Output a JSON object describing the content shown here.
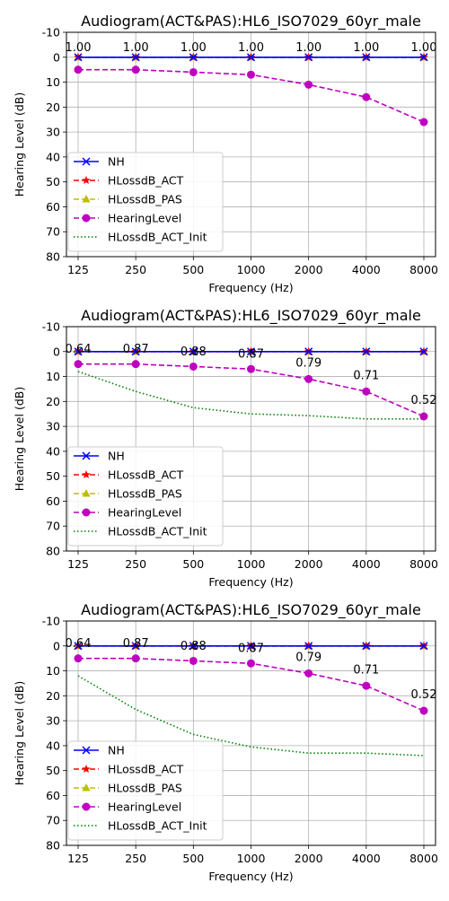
{
  "figure": {
    "title": "Audiogram(ACT&PAS):HL6_ISO7029_60yr_male"
  },
  "chart_data": [
    {
      "type": "line",
      "title": "Audiogram(ACT&PAS):HL6_ISO7029_60yr_male",
      "xlabel": "Frequency (Hz)",
      "ylabel": "Hearing Level (dB)",
      "categories": [
        "125",
        "250",
        "500",
        "1000",
        "2000",
        "4000",
        "8000"
      ],
      "yticks": [
        "-10",
        "0",
        "10",
        "20",
        "30",
        "40",
        "50",
        "60",
        "70",
        "80"
      ],
      "ylim": [
        80,
        -10
      ],
      "grid": true,
      "legend_position": "bottom-left",
      "series": [
        {
          "name": "NH",
          "color": "#0000ff",
          "style": "solid",
          "marker": "x",
          "values": [
            0,
            0,
            0,
            0,
            0,
            0,
            0
          ]
        },
        {
          "name": "HLossdB_ACT",
          "color": "#ff0000",
          "style": "dashed",
          "marker": "star",
          "values": [
            0,
            0,
            0,
            0,
            0,
            0,
            0
          ]
        },
        {
          "name": "HLossdB_PAS",
          "color": "#bfbf00",
          "style": "dashed",
          "marker": "triangle",
          "values": [
            0,
            0,
            0,
            0,
            0,
            0,
            0
          ]
        },
        {
          "name": "HearingLevel",
          "color": "#bf00bf",
          "style": "dashed",
          "marker": "circle",
          "values": [
            5,
            5,
            6,
            7,
            11,
            16,
            26
          ]
        },
        {
          "name": "HLossdB_ACT_Init",
          "color": "#008000",
          "style": "dotted",
          "marker": "none",
          "values": [
            0,
            0,
            0,
            0,
            0,
            0,
            0
          ]
        }
      ],
      "annotations": [
        "1.00",
        "1.00",
        "1.00",
        "1.00",
        "1.00",
        "1.00",
        "1.00"
      ],
      "annotation_y": [
        -2.5,
        -2.5,
        -2.5,
        -2.5,
        -2.5,
        -2.5,
        -2.5
      ]
    },
    {
      "type": "line",
      "title": "Audiogram(ACT&PAS):HL6_ISO7029_60yr_male",
      "xlabel": "Frequency (Hz)",
      "ylabel": "Hearing Level (dB)",
      "categories": [
        "125",
        "250",
        "500",
        "1000",
        "2000",
        "4000",
        "8000"
      ],
      "yticks": [
        "-10",
        "0",
        "10",
        "20",
        "30",
        "40",
        "50",
        "60",
        "70",
        "80"
      ],
      "ylim": [
        80,
        -10
      ],
      "grid": true,
      "legend_position": "bottom-left",
      "series": [
        {
          "name": "NH",
          "color": "#0000ff",
          "style": "solid",
          "marker": "x",
          "values": [
            0,
            0,
            0,
            0,
            0,
            0,
            0
          ]
        },
        {
          "name": "HLossdB_ACT",
          "color": "#ff0000",
          "style": "dashed",
          "marker": "star",
          "values": [
            0,
            0,
            0,
            0,
            0,
            0,
            0
          ]
        },
        {
          "name": "HLossdB_PAS",
          "color": "#bfbf00",
          "style": "dashed",
          "marker": "triangle",
          "values": [
            0,
            0,
            0,
            0,
            0,
            0,
            0
          ]
        },
        {
          "name": "HearingLevel",
          "color": "#bf00bf",
          "style": "dashed",
          "marker": "circle",
          "values": [
            5,
            5,
            6,
            7,
            11,
            16,
            26
          ]
        },
        {
          "name": "HLossdB_ACT_Init",
          "color": "#008000",
          "style": "dotted",
          "marker": "none",
          "values": [
            8,
            16,
            22.5,
            25,
            25.7,
            27,
            27
          ]
        }
      ],
      "annotations": [
        "0.64",
        "0.87",
        "0.88",
        "0.87",
        "0.79",
        "0.71",
        "0.52"
      ],
      "annotation_y": [
        0.5,
        0.5,
        1.5,
        2.5,
        6,
        11,
        21
      ]
    },
    {
      "type": "line",
      "title": "Audiogram(ACT&PAS):HL6_ISO7029_60yr_male",
      "xlabel": "Frequency (Hz)",
      "ylabel": "Hearing Level (dB)",
      "categories": [
        "125",
        "250",
        "500",
        "1000",
        "2000",
        "4000",
        "8000"
      ],
      "yticks": [
        "-10",
        "0",
        "10",
        "20",
        "30",
        "40",
        "50",
        "60",
        "70",
        "80"
      ],
      "ylim": [
        80,
        -10
      ],
      "grid": true,
      "legend_position": "bottom-left",
      "series": [
        {
          "name": "NH",
          "color": "#0000ff",
          "style": "solid",
          "marker": "x",
          "values": [
            0,
            0,
            0,
            0,
            0,
            0,
            0
          ]
        },
        {
          "name": "HLossdB_ACT",
          "color": "#ff0000",
          "style": "dashed",
          "marker": "star",
          "values": [
            0,
            0,
            0,
            0,
            0,
            0,
            0
          ]
        },
        {
          "name": "HLossdB_PAS",
          "color": "#bfbf00",
          "style": "dashed",
          "marker": "triangle",
          "values": [
            0,
            0,
            0,
            0,
            0,
            0,
            0
          ]
        },
        {
          "name": "HearingLevel",
          "color": "#bf00bf",
          "style": "dashed",
          "marker": "circle",
          "values": [
            5,
            5,
            6,
            7,
            11,
            16,
            26
          ]
        },
        {
          "name": "HLossdB_ACT_Init",
          "color": "#008000",
          "style": "dotted",
          "marker": "none",
          "values": [
            12,
            25.5,
            35.5,
            40.5,
            43,
            43,
            44
          ]
        }
      ],
      "annotations": [
        "0.64",
        "0.87",
        "0.88",
        "0.87",
        "0.79",
        "0.71",
        "0.52"
      ],
      "annotation_y": [
        0.5,
        0.5,
        1.5,
        2.5,
        6,
        11,
        21
      ]
    }
  ]
}
